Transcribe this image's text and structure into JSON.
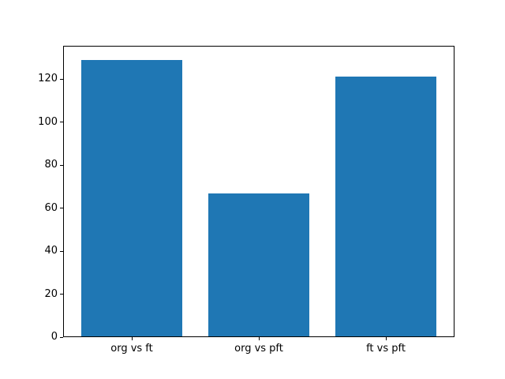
{
  "chart_data": {
    "type": "bar",
    "title": "",
    "xlabel": "",
    "ylabel": "",
    "categories": [
      "org vs ft",
      "org vs pft",
      "ft vs pft"
    ],
    "values": [
      129,
      67,
      121
    ],
    "yticks": [
      0,
      20,
      40,
      60,
      80,
      100,
      120
    ],
    "ylim": [
      0,
      135.45
    ],
    "bar_width_fraction": 0.8,
    "bar_color": "#1f77b4",
    "axis_color": "#000000",
    "background": "#ffffff",
    "grid": false,
    "legend": "none"
  }
}
